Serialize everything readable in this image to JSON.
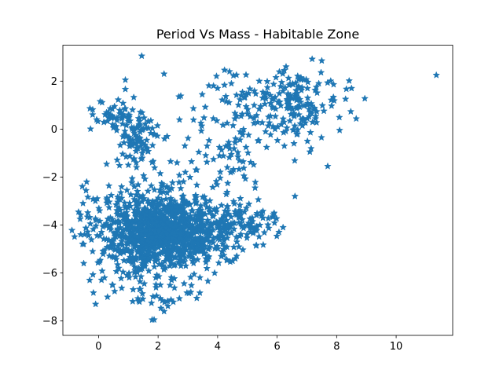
{
  "chart_data": {
    "type": "scatter",
    "title": "Period Vs Mass - Habitable Zone",
    "xlabel": "",
    "ylabel": "",
    "xlim": [
      -1.2,
      11.9
    ],
    "ylim": [
      -8.6,
      3.5
    ],
    "x_ticks": [
      0,
      2,
      4,
      6,
      8,
      10
    ],
    "y_ticks": [
      -8,
      -6,
      -4,
      -2,
      0,
      2
    ],
    "x_tick_labels": [
      "0",
      "2",
      "4",
      "6",
      "8",
      "10"
    ],
    "y_tick_labels": [
      "−8",
      "−6",
      "−4",
      "−2",
      "0",
      "2"
    ],
    "marker": "star",
    "color": "#1f77b4",
    "grid": false,
    "legend": "none",
    "clusters": [
      {
        "center": [
          2.3,
          -4.2
        ],
        "spread": [
          1.1,
          0.7
        ],
        "count": 900
      },
      {
        "center": [
          1.8,
          -5.0
        ],
        "spread": [
          0.9,
          0.8
        ],
        "count": 180
      },
      {
        "center": [
          4.6,
          -3.9
        ],
        "spread": [
          0.7,
          0.45
        ],
        "count": 110
      },
      {
        "center": [
          1.4,
          -2.8
        ],
        "spread": [
          1.0,
          0.6
        ],
        "count": 70
      },
      {
        "center": [
          1.3,
          -0.4
        ],
        "spread": [
          0.35,
          0.55
        ],
        "count": 90
      },
      {
        "center": [
          0.6,
          0.5
        ],
        "spread": [
          0.45,
          0.35
        ],
        "count": 45
      },
      {
        "center": [
          6.5,
          1.0
        ],
        "spread": [
          0.8,
          0.7
        ],
        "count": 170
      },
      {
        "center": [
          4.6,
          0.8
        ],
        "spread": [
          0.7,
          0.9
        ],
        "count": 60
      },
      {
        "center": [
          4.2,
          -1.6
        ],
        "spread": [
          0.9,
          0.9
        ],
        "count": 50
      },
      {
        "center": [
          1.8,
          -6.6
        ],
        "spread": [
          0.8,
          0.6
        ],
        "count": 45
      }
    ],
    "points": [
      [
        11.35,
        2.25
      ],
      [
        1.45,
        3.05
      ],
      [
        2.2,
        2.3
      ],
      [
        7.5,
        2.85
      ],
      [
        6.3,
        2.6
      ],
      [
        8.5,
        1.7
      ],
      [
        8.3,
        1.25
      ],
      [
        8.1,
        -0.05
      ],
      [
        7.7,
        -1.55
      ],
      [
        7.1,
        -0.95
      ],
      [
        -0.4,
        -2.2
      ],
      [
        -0.6,
        -4.4
      ],
      [
        -0.5,
        -5.6
      ],
      [
        -0.3,
        -6.3
      ],
      [
        0.3,
        -7.0
      ],
      [
        1.8,
        -7.95
      ],
      [
        2.2,
        -7.6
      ],
      [
        3.3,
        -7.05
      ],
      [
        3.1,
        -6.8
      ],
      [
        -0.1,
        -7.3
      ],
      [
        6.6,
        -2.8
      ],
      [
        6.2,
        -4.1
      ],
      [
        5.9,
        -3.5
      ],
      [
        5.1,
        -4.3
      ],
      [
        4.5,
        -5.5
      ],
      [
        0.2,
        -6.2
      ],
      [
        3.9,
        -6.0
      ],
      [
        0.9,
        2.05
      ],
      [
        4.0,
        1.7
      ],
      [
        4.4,
        2.4
      ],
      [
        2.7,
        1.35
      ],
      [
        5.6,
        1.35
      ],
      [
        -0.2,
        0.6
      ],
      [
        2.9,
        -0.7
      ],
      [
        3.3,
        -1.7
      ],
      [
        5.4,
        2.0
      ],
      [
        6.9,
        0.4
      ],
      [
        7.4,
        1.9
      ],
      [
        3.6,
        -1.1
      ],
      [
        1.0,
        -1.5
      ],
      [
        1.2,
        -2.4
      ],
      [
        0.7,
        -3.3
      ],
      [
        -0.5,
        -4.8
      ],
      [
        -0.2,
        -5.1
      ],
      [
        0.1,
        -4.3
      ]
    ]
  }
}
